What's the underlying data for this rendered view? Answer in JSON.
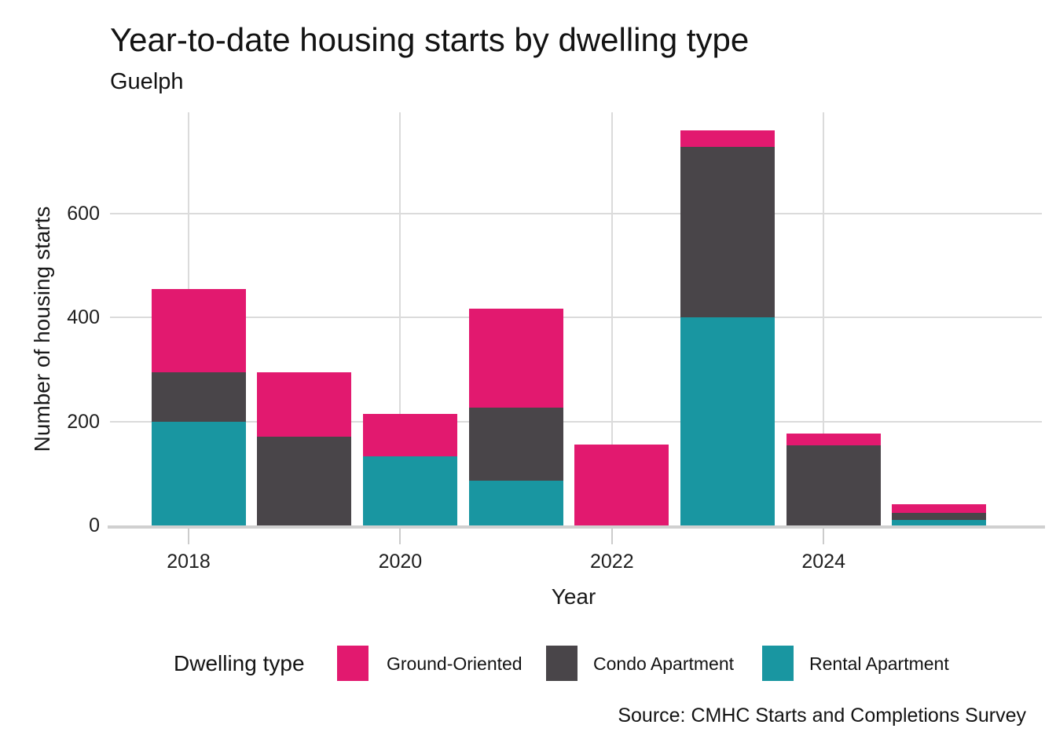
{
  "header": {
    "title": "Year-to-date housing starts by dwelling type",
    "subtitle": "Guelph"
  },
  "axes": {
    "y_title": "Number of housing starts",
    "x_title": "Year"
  },
  "legend": {
    "title": "Dwelling type",
    "items": [
      {
        "label": "Ground-Oriented",
        "color": "#E2196F"
      },
      {
        "label": "Condo Apartment",
        "color": "#494549"
      },
      {
        "label": "Rental Apartment",
        "color": "#1996A1"
      }
    ]
  },
  "source": "Source: CMHC Starts and Completions Survey",
  "colors": {
    "ground_oriented": "#E2196F",
    "condo_apartment": "#494549",
    "rental_apartment": "#1996A1",
    "gridline": "#DBDBDB",
    "axis_line": "#D0D0D0",
    "tick": "#CCCCCC",
    "text": "#1A1A1A"
  },
  "chart_data": {
    "type": "bar",
    "stacked": true,
    "title": "Year-to-date housing starts by dwelling type",
    "subtitle": "Guelph",
    "xlabel": "Year",
    "ylabel": "Number of housing starts",
    "x": [
      2018,
      2019,
      2020,
      2021,
      2022,
      2023,
      2024,
      2025
    ],
    "x_ticks": [
      "2018",
      "2020",
      "2022",
      "2024"
    ],
    "x_tick_years": [
      2018,
      2020,
      2022,
      2024
    ],
    "y_ticks": [
      0,
      200,
      400,
      600
    ],
    "ylim": [
      0,
      795
    ],
    "grid": true,
    "legend_position": "bottom",
    "series": [
      {
        "name": "Ground-Oriented",
        "color": "#E2196F",
        "values": [
          160,
          125,
          82,
          190,
          155,
          32,
          22,
          17
        ]
      },
      {
        "name": "Condo Apartment",
        "color": "#494549",
        "values": [
          95,
          170,
          0,
          141,
          0,
          328,
          154,
          14
        ]
      },
      {
        "name": "Rental Apartment",
        "color": "#1996A1",
        "values": [
          200,
          0,
          133,
          86,
          0,
          400,
          0,
          10
        ]
      }
    ],
    "stack_order_bottom_to_top": [
      "Rental Apartment",
      "Condo Apartment",
      "Ground-Oriented"
    ],
    "totals": [
      455,
      295,
      215,
      417,
      155,
      760,
      176,
      41
    ]
  }
}
